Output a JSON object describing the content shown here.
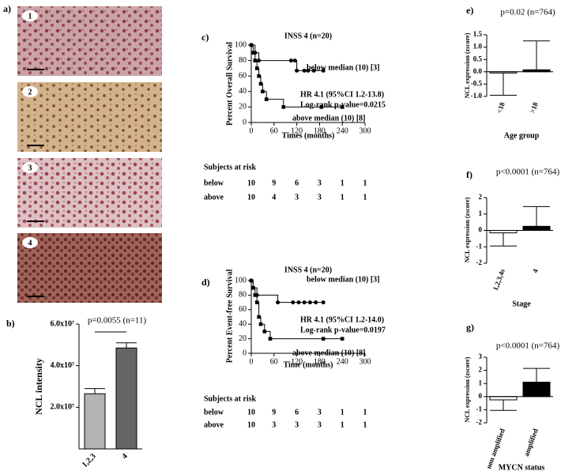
{
  "panel_a": {
    "label": "a)",
    "images": [
      "1",
      "2",
      "3",
      "4"
    ]
  },
  "chart_data": [
    {
      "panel": "b)",
      "type": "bar",
      "ylabel": "NCL intensity",
      "annotation": "p=0.0055 (n=11)",
      "categories": [
        "1,2,3",
        "4"
      ],
      "values": [
        26500000,
        48500000
      ],
      "errors": [
        2500000,
        2500000
      ],
      "colors": [
        "#b3b3b3",
        "#666666"
      ],
      "ylim": [
        0,
        60000000
      ],
      "yticks": [
        {
          "value": 20000000,
          "label": "2.0x10⁷"
        },
        {
          "value": 40000000,
          "label": "4.0x10⁷"
        },
        {
          "value": 60000000,
          "label": "6.0x10⁷"
        }
      ]
    },
    {
      "panel": "c)",
      "type": "km",
      "title": "INSS 4 (n=20)",
      "ylabel": "Percent Overall Survival",
      "xlabel": "Times (months)",
      "xlim": [
        0,
        300
      ],
      "xticks": [
        0,
        60,
        120,
        180,
        240,
        300
      ],
      "ylim": [
        0,
        100
      ],
      "yticks": [
        0,
        20,
        40,
        60,
        80,
        100
      ],
      "annotations": [
        "HR 4.1 (95%CI 1.2-13.8)",
        "Log-rank p-value=0.0215"
      ],
      "series": [
        {
          "name": "below median (10) [3]",
          "marker": "circle",
          "x": [
            0,
            10,
            20,
            105,
            115,
            120,
            140,
            150,
            165,
            190
          ],
          "values": [
            100,
            90,
            80,
            80,
            80,
            67,
            67,
            67,
            67,
            67
          ]
        },
        {
          "name": "above median (10) [8]",
          "marker": "square",
          "x": [
            0,
            5,
            10,
            15,
            20,
            25,
            30,
            40,
            85,
            185,
            240
          ],
          "values": [
            100,
            90,
            80,
            70,
            60,
            50,
            40,
            30,
            20,
            20,
            20
          ]
        }
      ],
      "risk_table": {
        "title": "Subjects at risk",
        "rows": [
          {
            "name": "below",
            "values": [
              10,
              9,
              6,
              3,
              1,
              1
            ]
          },
          {
            "name": "above",
            "values": [
              10,
              4,
              3,
              3,
              1,
              1
            ]
          }
        ]
      }
    },
    {
      "panel": "d)",
      "type": "km",
      "title": "INSS 4 (n=20)",
      "ylabel": "Percent Event-free Survival",
      "xlabel": "Time (months)",
      "xlim": [
        0,
        300
      ],
      "xticks": [
        0,
        60,
        120,
        180,
        240,
        300
      ],
      "ylim": [
        0,
        100
      ],
      "yticks": [
        0,
        20,
        40,
        60,
        80,
        100
      ],
      "annotations": [
        "HR 4.1 (95%CI 1.2-14.0)",
        "Log-rank p-value=0.0197"
      ],
      "series": [
        {
          "name": "below median (10) [3]",
          "marker": "circle",
          "x": [
            0,
            5,
            15,
            70,
            110,
            125,
            140,
            155,
            170,
            190
          ],
          "values": [
            100,
            90,
            80,
            70,
            70,
            70,
            70,
            70,
            70,
            70
          ]
        },
        {
          "name": "above median (10) [8]",
          "marker": "square",
          "x": [
            0,
            5,
            10,
            15,
            20,
            25,
            35,
            50,
            190,
            240
          ],
          "values": [
            100,
            90,
            80,
            70,
            50,
            40,
            30,
            20,
            20,
            20
          ]
        }
      ],
      "risk_table": {
        "title": "Subjects at risk",
        "rows": [
          {
            "name": "below",
            "values": [
              10,
              9,
              6,
              3,
              1,
              1
            ]
          },
          {
            "name": "above",
            "values": [
              10,
              3,
              3,
              3,
              1,
              1
            ]
          }
        ]
      }
    },
    {
      "panel": "e)",
      "type": "bar",
      "ylabel": "NCL expression (zscore)",
      "xlabel": "Age group",
      "annotation": "p=0.02 (n=764)",
      "categories": [
        "<18",
        ">18"
      ],
      "values": [
        -0.05,
        0.08
      ],
      "errors": [
        0.9,
        1.17
      ],
      "colors": [
        "#ffffff",
        "#000000"
      ],
      "ylim": [
        -1,
        1.5
      ],
      "yticks": [
        {
          "value": -1,
          "label": "-1.0"
        },
        -0.5,
        {
          "value": 0,
          "label": "0.0"
        },
        0.5,
        {
          "value": 1,
          "label": "1.0"
        },
        1.5
      ]
    },
    {
      "panel": "f)",
      "type": "bar",
      "ylabel": "NCL expression (zscore)",
      "xlabel": "Stage",
      "annotation": "p<0.0001 (n=764)",
      "categories": [
        "1,2,3,4s",
        "4"
      ],
      "values": [
        -0.15,
        0.25
      ],
      "errors": [
        0.8,
        1.2
      ],
      "colors": [
        "#ffffff",
        "#000000"
      ],
      "ylim": [
        -2,
        2
      ],
      "yticks": [
        -2,
        -1,
        0,
        1,
        2
      ]
    },
    {
      "panel": "g)",
      "type": "bar",
      "ylabel": "NCL expression (zscore)",
      "xlabel": "MYCN status",
      "annotation": "p<0.0001 (n=764)",
      "categories": [
        "non amplified",
        "amplified"
      ],
      "values": [
        -0.25,
        1.1
      ],
      "errors": [
        0.8,
        1.05
      ],
      "colors": [
        "#ffffff",
        "#000000"
      ],
      "ylim": [
        -2,
        3
      ],
      "yticks": [
        -2,
        -1,
        0,
        1,
        2,
        3
      ]
    }
  ]
}
